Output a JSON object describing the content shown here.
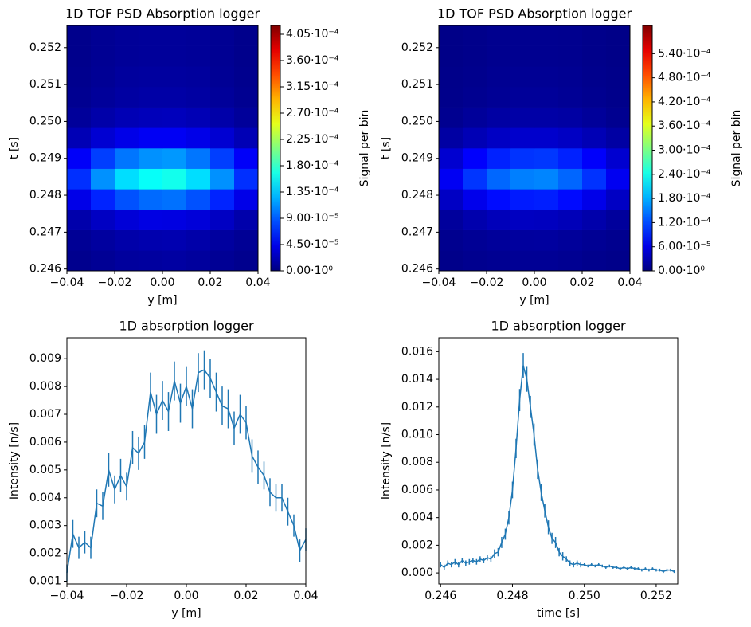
{
  "chart_data": [
    {
      "type": "heatmap",
      "title": "1D TOF PSD Absorption logger",
      "xlabel": "y [m]",
      "ylabel": "t [s]",
      "colorbar_label": "Signal per bin",
      "xlim": [
        -0.04,
        0.04
      ],
      "ylim": [
        0.24595,
        0.2526
      ],
      "xticks": [
        {
          "value": -0.04,
          "label": "−0.04"
        },
        {
          "value": -0.02,
          "label": "−0.02"
        },
        {
          "value": 0,
          "label": "0.00"
        },
        {
          "value": 0.02,
          "label": "0.02"
        },
        {
          "value": 0.04,
          "label": "0.04"
        }
      ],
      "yticks": [
        0.246,
        0.247,
        0.248,
        0.249,
        {
          "value": 0.25,
          "label": "0.250"
        },
        0.251,
        0.252
      ],
      "clim": [
        0,
        0.00042
      ],
      "colormap": "jet",
      "cticks": [
        {
          "value": 0,
          "label": "0.00·10⁰"
        },
        {
          "value": 4.5e-05,
          "label": "4.50·10⁻⁵"
        },
        {
          "value": 9e-05,
          "label": "9.00·10⁻⁵"
        },
        {
          "value": 0.000135,
          "label": "1.35·10⁻⁴"
        },
        {
          "value": 0.00018,
          "label": "1.80·10⁻⁴"
        },
        {
          "value": 0.000225,
          "label": "2.25·10⁻⁴"
        },
        {
          "value": 0.00027,
          "label": "2.70·10⁻⁴"
        },
        {
          "value": 0.000315,
          "label": "3.15·10⁻⁴"
        },
        {
          "value": 0.00036,
          "label": "3.60·10⁻⁴"
        },
        {
          "value": 0.000405,
          "label": "4.05·10⁻⁴"
        }
      ],
      "z": [
        [
          6e-06,
          9e-06,
          1.2e-05,
          1.3e-05,
          1.4e-05,
          1.2e-05,
          9e-06,
          6e-06
        ],
        [
          9e-06,
          1.3e-05,
          1.7e-05,
          1.9e-05,
          2e-05,
          1.7e-05,
          1.3e-05,
          9e-06
        ],
        [
          1.8e-05,
          2.8e-05,
          3.6e-05,
          4.1e-05,
          4e-05,
          3.7e-05,
          2.8e-05,
          1.8e-05
        ],
        [
          4.3e-05,
          6.7e-05,
          8.6e-05,
          9.6e-05,
          9.9e-05,
          8.6e-05,
          6.7e-05,
          4.3e-05
        ],
        [
          7.2e-05,
          0.000112,
          0.000144,
          0.00016,
          0.000165,
          0.000144,
          0.000112,
          7.2e-05
        ],
        [
          5e-05,
          7.8e-05,
          0.000101,
          0.000112,
          0.000115,
          0.000101,
          7.8e-05,
          5e-05
        ],
        [
          2.2e-05,
          3.4e-05,
          4.3e-05,
          4.8e-05,
          4.8e-05,
          4.3e-05,
          3.4e-05,
          2.2e-05
        ],
        [
          1.1e-05,
          1.7e-05,
          2.2e-05,
          2.4e-05,
          2.5e-05,
          2.2e-05,
          1.7e-05,
          1.1e-05
        ],
        [
          7e-06,
          1.1e-05,
          1.4e-05,
          1.6e-05,
          1.6e-05,
          1.4e-05,
          1.1e-05,
          7e-06
        ],
        [
          6e-06,
          9e-06,
          1.2e-05,
          1.3e-05,
          1.3e-05,
          1.2e-05,
          9e-06,
          6e-06
        ],
        [
          5e-06,
          8e-06,
          1e-05,
          1.1e-05,
          1.1e-05,
          1e-05,
          8e-06,
          5e-06
        ],
        [
          5e-06,
          8e-06,
          1e-05,
          1.1e-05,
          1.1e-05,
          1e-05,
          8e-06,
          5e-06
        ]
      ]
    },
    {
      "type": "heatmap",
      "title": "1D TOF PSD Absorption logger",
      "xlabel": "y [m]",
      "ylabel": "t [s]",
      "colorbar_label": "Signal per bin",
      "xlim": [
        -0.04,
        0.04
      ],
      "ylim": [
        0.24595,
        0.2526
      ],
      "xticks": [
        {
          "value": -0.04,
          "label": "−0.04"
        },
        {
          "value": -0.02,
          "label": "−0.02"
        },
        {
          "value": 0,
          "label": "0.00"
        },
        {
          "value": 0.02,
          "label": "0.02"
        },
        {
          "value": 0.04,
          "label": "0.04"
        }
      ],
      "yticks": [
        0.246,
        0.247,
        0.248,
        0.249,
        {
          "value": 0.25,
          "label": "0.250"
        },
        0.251,
        0.252
      ],
      "clim": [
        0,
        0.00061
      ],
      "colormap": "jet",
      "cticks": [
        {
          "value": 0,
          "label": "0.00·10⁰"
        },
        {
          "value": 6e-05,
          "label": "6.00·10⁻⁵"
        },
        {
          "value": 0.00012,
          "label": "1.20·10⁻⁴"
        },
        {
          "value": 0.00018,
          "label": "1.80·10⁻⁴"
        },
        {
          "value": 0.00024,
          "label": "2.40·10⁻⁴"
        },
        {
          "value": 0.0003,
          "label": "3.00·10⁻⁴"
        },
        {
          "value": 0.00036,
          "label": "3.60·10⁻⁴"
        },
        {
          "value": 0.00042,
          "label": "4.20·10⁻⁴"
        },
        {
          "value": 0.00048,
          "label": "4.80·10⁻⁴"
        },
        {
          "value": 0.00054,
          "label": "5.40·10⁻⁴"
        }
      ],
      "z": [
        [
          6e-06,
          9e-06,
          1.1e-05,
          1.3e-05,
          1.3e-05,
          1.1e-05,
          8e-06,
          6e-06
        ],
        [
          9e-06,
          1.3e-05,
          1.6e-05,
          1.8e-05,
          1.9e-05,
          1.6e-05,
          1.2e-05,
          9e-06
        ],
        [
          1.7e-05,
          2.7e-05,
          3.5e-05,
          3.9e-05,
          3.8e-05,
          3.4e-05,
          2.6e-05,
          1.7e-05
        ],
        [
          4.1e-05,
          6.4e-05,
          8.3e-05,
          9.2e-05,
          9.4e-05,
          8.2e-05,
          6.3e-05,
          4.1e-05
        ],
        [
          6.9e-05,
          0.000108,
          0.000138,
          0.000152,
          0.000156,
          0.000137,
          0.000106,
          6.8e-05
        ],
        [
          4.8e-05,
          7.5e-05,
          9.6e-05,
          0.000107,
          0.000109,
          9.6e-05,
          7.4e-05,
          4.8e-05
        ],
        [
          2.1e-05,
          3.2e-05,
          4.1e-05,
          4.6e-05,
          4.6e-05,
          4.1e-05,
          3.2e-05,
          2.1e-05
        ],
        [
          1e-05,
          1.6e-05,
          2.1e-05,
          2.3e-05,
          2.3e-05,
          2.1e-05,
          1.6e-05,
          1e-05
        ],
        [
          7e-06,
          1e-05,
          1.3e-05,
          1.5e-05,
          1.5e-05,
          1.3e-05,
          1e-05,
          7e-06
        ],
        [
          6e-06,
          8e-06,
          1.1e-05,
          1.2e-05,
          1.2e-05,
          1.1e-05,
          8e-06,
          6e-06
        ],
        [
          5e-06,
          7e-06,
          9e-06,
          1e-05,
          1e-05,
          9e-06,
          7e-06,
          5e-06
        ],
        [
          5e-06,
          7e-06,
          9e-06,
          1e-05,
          1e-05,
          9e-06,
          7e-06,
          5e-06
        ]
      ]
    },
    {
      "type": "errorline",
      "title": "1D absorption logger",
      "xlabel": "y [m]",
      "ylabel": "Intensity [n/s]",
      "color": "#1f77b4",
      "xlim": [
        -0.04,
        0.04
      ],
      "ylim": [
        0.0009,
        0.00975
      ],
      "xticks": [
        {
          "value": -0.04,
          "label": "−0.04"
        },
        {
          "value": -0.02,
          "label": "−0.02"
        },
        {
          "value": 0,
          "label": "0.00"
        },
        {
          "value": 0.02,
          "label": "0.02"
        },
        {
          "value": 0.04,
          "label": "0.04"
        }
      ],
      "yticks": [
        0.001,
        0.002,
        0.003,
        0.004,
        0.005,
        0.006,
        0.007,
        0.008,
        0.009
      ],
      "x": [
        -0.04,
        -0.038,
        -0.036,
        -0.034,
        -0.032,
        -0.03,
        -0.028,
        -0.026,
        -0.024,
        -0.022,
        -0.02,
        -0.018,
        -0.016,
        -0.014,
        -0.012,
        -0.01,
        -0.008,
        -0.006,
        -0.004,
        -0.002,
        0,
        0.002,
        0.004,
        0.006,
        0.008,
        0.01,
        0.012,
        0.014,
        0.016,
        0.018,
        0.02,
        0.022,
        0.024,
        0.026,
        0.028,
        0.03,
        0.032,
        0.034,
        0.036,
        0.038,
        0.04
      ],
      "values": [
        0.0013,
        0.0027,
        0.0022,
        0.0024,
        0.0022,
        0.0038,
        0.0037,
        0.005,
        0.0043,
        0.0048,
        0.0044,
        0.0058,
        0.0056,
        0.006,
        0.0078,
        0.007,
        0.0075,
        0.0071,
        0.0082,
        0.0074,
        0.008,
        0.0072,
        0.0085,
        0.0086,
        0.0083,
        0.0078,
        0.0073,
        0.0072,
        0.0065,
        0.007,
        0.0067,
        0.0055,
        0.0051,
        0.0048,
        0.0042,
        0.004,
        0.004,
        0.0035,
        0.003,
        0.0021,
        0.0025
      ],
      "errors": [
        0.0003,
        0.0005,
        0.0004,
        0.0004,
        0.0004,
        0.0005,
        0.0005,
        0.0006,
        0.0005,
        0.0006,
        0.0005,
        0.0006,
        0.0006,
        0.0006,
        0.0007,
        0.0007,
        0.0007,
        0.0007,
        0.0007,
        0.0007,
        0.0007,
        0.0007,
        0.0007,
        0.0007,
        0.0007,
        0.0007,
        0.0007,
        0.0007,
        0.0006,
        0.0007,
        0.0006,
        0.0006,
        0.0006,
        0.0005,
        0.0005,
        0.0005,
        0.0005,
        0.0005,
        0.0004,
        0.0004,
        0.0004
      ]
    },
    {
      "type": "errorline",
      "title": "1D absorption logger",
      "xlabel": "time [s]",
      "ylabel": "Intensity [n/s]",
      "color": "#1f77b4",
      "xlim": [
        0.24595,
        0.2526
      ],
      "ylim": [
        -0.0008,
        0.017
      ],
      "xticks": [
        0.246,
        0.248,
        {
          "value": 0.25,
          "label": "0.250"
        },
        0.252
      ],
      "yticks": [
        {
          "value": 0,
          "label": "0.000"
        },
        0.002,
        0.004,
        0.006,
        0.008,
        {
          "value": 0.01,
          "label": "0.010"
        },
        0.012,
        0.014,
        0.016
      ],
      "x": [
        0.246,
        0.2461,
        0.2462,
        0.2463,
        0.2464,
        0.2465,
        0.2466,
        0.2467,
        0.2468,
        0.2469,
        0.247,
        0.2471,
        0.2472,
        0.2473,
        0.2474,
        0.2475,
        0.2476,
        0.2477,
        0.2478,
        0.2479,
        0.248,
        0.2481,
        0.2482,
        0.2483,
        0.2484,
        0.2485,
        0.2486,
        0.2487,
        0.2488,
        0.2489,
        0.249,
        0.2491,
        0.2492,
        0.2493,
        0.2494,
        0.2495,
        0.2496,
        0.2497,
        0.2498,
        0.2499,
        0.25,
        0.2501,
        0.2502,
        0.2503,
        0.2504,
        0.2505,
        0.2506,
        0.2507,
        0.2508,
        0.2509,
        0.251,
        0.2511,
        0.2512,
        0.2513,
        0.2514,
        0.2515,
        0.2516,
        0.2517,
        0.2518,
        0.2519,
        0.252,
        0.2521,
        0.2522,
        0.2523,
        0.2524,
        0.2525
      ],
      "values": [
        0.0006,
        0.0004,
        0.0007,
        0.0006,
        0.0008,
        0.0006,
        0.0009,
        0.0007,
        0.0008,
        0.0009,
        0.0008,
        0.001,
        0.0009,
        0.0011,
        0.001,
        0.0014,
        0.0015,
        0.0022,
        0.0028,
        0.004,
        0.006,
        0.009,
        0.0125,
        0.015,
        0.014,
        0.012,
        0.01,
        0.0075,
        0.0058,
        0.0045,
        0.0033,
        0.0025,
        0.0022,
        0.0015,
        0.0012,
        0.001,
        0.0007,
        0.0006,
        0.0007,
        0.0006,
        0.0006,
        0.0005,
        0.0006,
        0.0005,
        0.0006,
        0.0005,
        0.0004,
        0.0005,
        0.0004,
        0.0004,
        0.0003,
        0.0004,
        0.0003,
        0.0004,
        0.0003,
        0.0003,
        0.0002,
        0.0003,
        0.0002,
        0.0003,
        0.0002,
        0.0002,
        0.0001,
        0.0002,
        0.0002,
        0.0001
      ],
      "errors": [
        0.0002,
        0.0002,
        0.0002,
        0.0002,
        0.0002,
        0.0002,
        0.0002,
        0.0002,
        0.0002,
        0.0002,
        0.0002,
        0.0002,
        0.0002,
        0.0002,
        0.0002,
        0.0003,
        0.0003,
        0.0004,
        0.0004,
        0.0005,
        0.0006,
        0.0007,
        0.0008,
        0.0009,
        0.0009,
        0.0008,
        0.0008,
        0.0007,
        0.0006,
        0.0005,
        0.0005,
        0.0004,
        0.0004,
        0.0003,
        0.0003,
        0.0002,
        0.0002,
        0.0002,
        0.0002,
        0.0002,
        0.0001,
        0.0001,
        0.0001,
        0.0001,
        0.0001,
        0.0001,
        0.0001,
        0.0001,
        0.0001,
        0.0001,
        0.0001,
        0.0001,
        0.0001,
        0.0001,
        0.0001,
        0.0001,
        0.0001,
        0.0001,
        0.0001,
        0.0001,
        0.0001,
        0.0001,
        0.0001,
        0.0001,
        0.0001,
        0.0001
      ]
    }
  ]
}
